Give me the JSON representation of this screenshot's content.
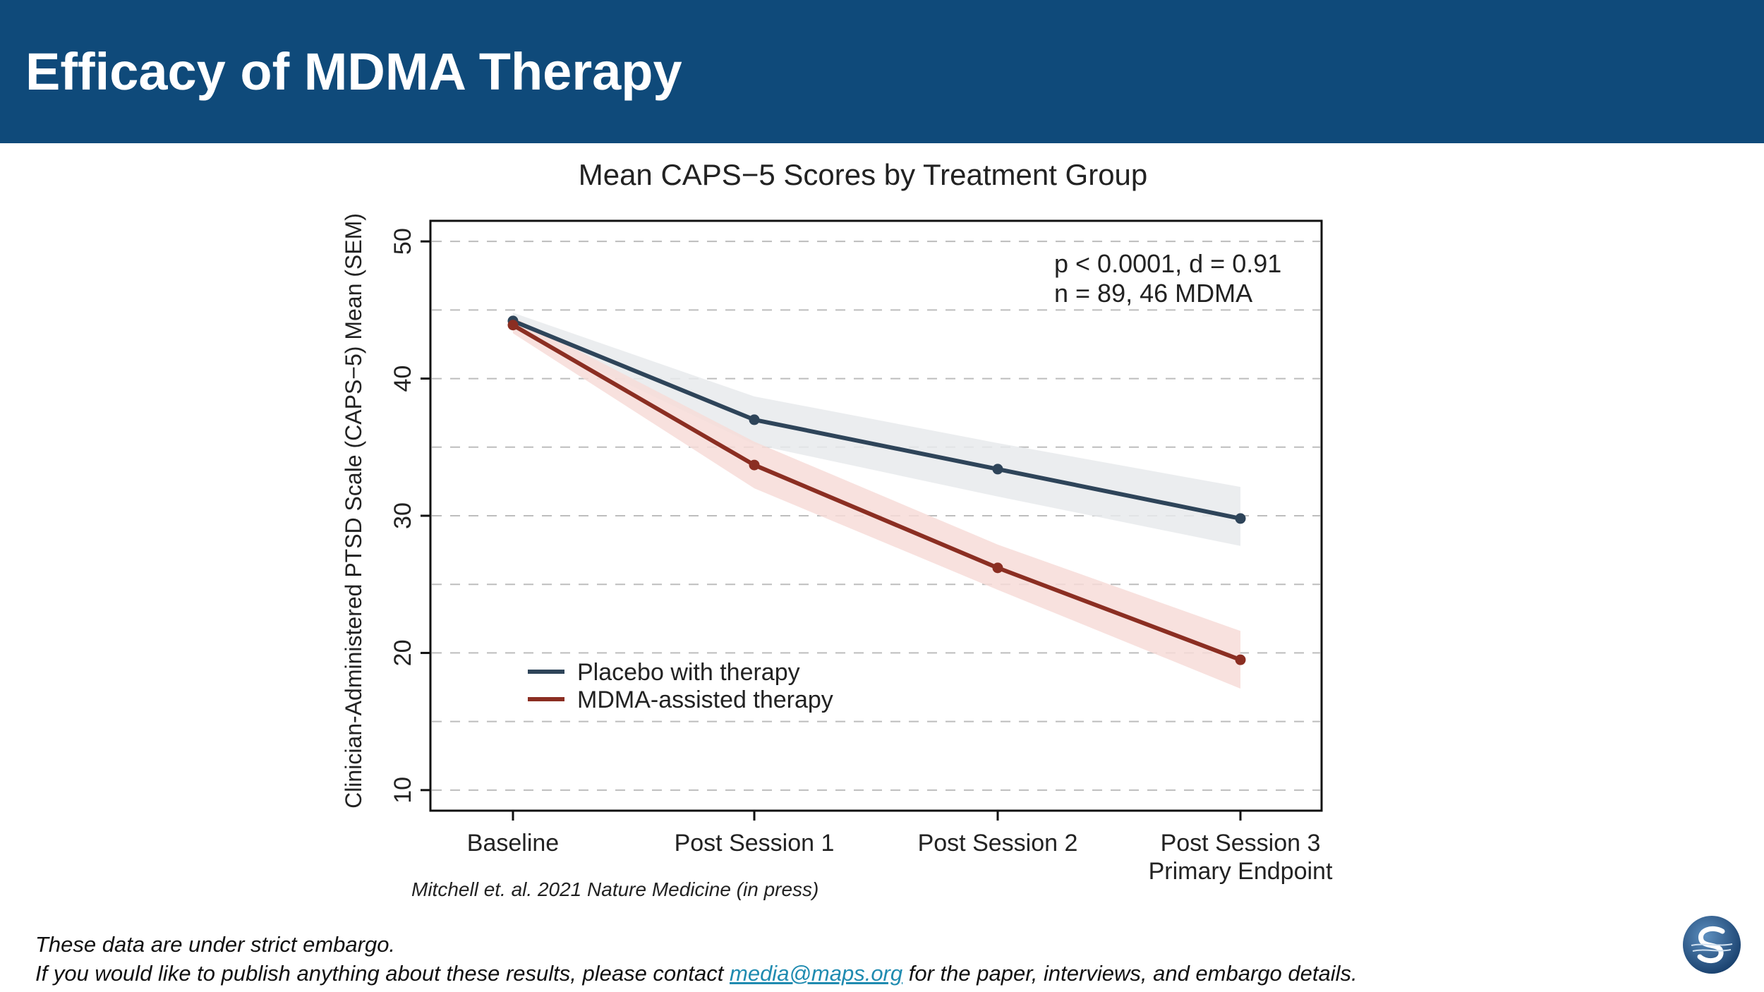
{
  "header": {
    "title": "Efficacy of MDMA Therapy"
  },
  "chart_data": {
    "type": "line",
    "title": "Mean CAPS−5 Scores by Treatment Group",
    "ylabel": "Clinician-Administered PTSD Scale (CAPS−5) Mean (SEM)",
    "xlabel": "",
    "categories": [
      "Baseline",
      "Post Session 1",
      "Post Session 2",
      "Post Session 3"
    ],
    "category_sublabels": [
      "",
      "",
      "",
      "Primary Endpoint"
    ],
    "ylim": [
      8.5,
      51.5
    ],
    "yticks": [
      10,
      20,
      30,
      40,
      50
    ],
    "grid_lines": [
      10,
      15,
      20,
      25,
      30,
      35,
      40,
      45,
      50
    ],
    "grid": true,
    "series": [
      {
        "name": "Placebo with therapy",
        "color": "#2e4459",
        "band_color": "#e8eaec",
        "values": [
          44.2,
          37.0,
          33.4,
          29.8
        ],
        "lower": [
          43.6,
          35.2,
          31.4,
          27.8
        ],
        "upper": [
          44.8,
          38.7,
          35.3,
          32.1
        ]
      },
      {
        "name": "MDMA-assisted therapy",
        "color": "#8b2e22",
        "band_color": "#f7dcd8",
        "values": [
          43.9,
          33.7,
          26.2,
          19.5
        ],
        "lower": [
          43.3,
          32.0,
          24.6,
          17.4
        ],
        "upper": [
          44.5,
          35.4,
          27.9,
          21.6
        ]
      }
    ],
    "annotations": [
      "p < 0.0001, d = 0.91",
      "n = 89, 46 MDMA"
    ],
    "legend_position": "bottom-left",
    "citation": "Mitchell et. al. 2021 Nature Medicine (in press)"
  },
  "footer": {
    "line1": "These data are under strict embargo.",
    "line2_prefix": "If you would like to publish anything about these results, please contact ",
    "email": "media@maps.org",
    "line2_suffix": " for the paper, interviews, and embargo details."
  },
  "logo": {
    "icon": "maps-logo-icon"
  }
}
